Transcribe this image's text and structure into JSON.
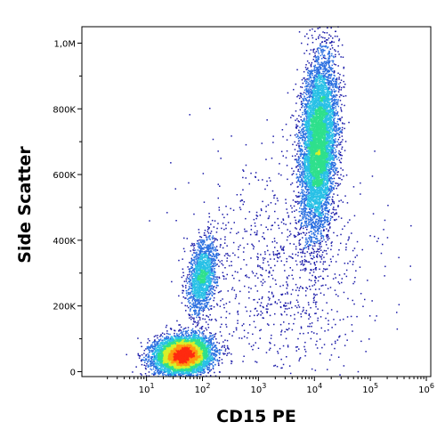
{
  "chart_data": {
    "type": "scatter",
    "subtype": "flow-cytometry-density-dot-plot",
    "title": "",
    "xlabel": "CD15 PE",
    "ylabel": "Side Scatter",
    "x_scale": "log",
    "xlim": [
      0.7,
      1200000
    ],
    "ylim": [
      -15000,
      1050000
    ],
    "x_ticks": [
      {
        "value": 10,
        "base": "10",
        "exp": "1"
      },
      {
        "value": 100,
        "base": "10",
        "exp": "2"
      },
      {
        "value": 1000,
        "base": "10",
        "exp": "3"
      },
      {
        "value": 10000,
        "base": "10",
        "exp": "4"
      },
      {
        "value": 100000,
        "base": "10",
        "exp": "5"
      },
      {
        "value": 1000000,
        "base": "10",
        "exp": "6"
      }
    ],
    "y_ticks": [
      {
        "value": 0,
        "label": "0"
      },
      {
        "value": 200000,
        "label": "200K"
      },
      {
        "value": 400000,
        "label": "400K"
      },
      {
        "value": 600000,
        "label": "600K"
      },
      {
        "value": 800000,
        "label": "800K"
      },
      {
        "value": 1000000,
        "label": "1,0M"
      }
    ],
    "grid": false,
    "legend": "none",
    "density_colormap": [
      "#1a1aa8",
      "#2a6fe0",
      "#29c1e6",
      "#2fe08c",
      "#d8f02a",
      "#ff9a10",
      "#ff2a10"
    ],
    "populations": [
      {
        "center_x": 45,
        "center_y": 50000,
        "spread_log_x": 0.25,
        "spread_y": 28000,
        "tilt": 0.1,
        "relative_count": 0.42
      },
      {
        "center_x": 100,
        "center_y": 290000,
        "spread_log_x": 0.13,
        "spread_y": 55000,
        "tilt": 0.35,
        "relative_count": 0.1
      },
      {
        "center_x": 12000,
        "center_y": 690000,
        "spread_log_x": 0.16,
        "spread_y": 130000,
        "tilt": 0.25,
        "relative_count": 0.42
      },
      {
        "center_x": 3000,
        "center_y": 300000,
        "spread_log_x": 0.8,
        "spread_y": 180000,
        "tilt": 0,
        "relative_count": 0.06
      }
    ]
  }
}
